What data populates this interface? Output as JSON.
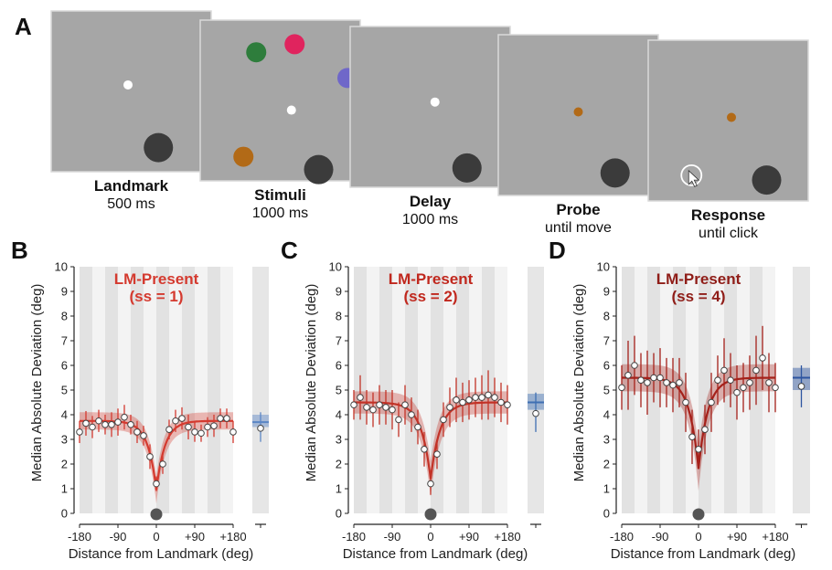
{
  "panel_a": {
    "letter": "A",
    "frames": [
      {
        "title": "Landmark",
        "duration": "500 ms",
        "dots": [
          {
            "color": "#ffffff",
            "r": 5,
            "fx": 0.48,
            "fy": 0.46
          }
        ],
        "landmark": {
          "fx": 0.67,
          "fy": 0.85
        }
      },
      {
        "title": "Stimuli",
        "duration": "1000 ms",
        "dots": [
          {
            "color": "#2e7d3c",
            "r": 11,
            "fx": 0.35,
            "fy": 0.2
          },
          {
            "color": "#e0245e",
            "r": 11,
            "fx": 0.59,
            "fy": 0.15
          },
          {
            "color": "#6f67c9",
            "r": 11,
            "fx": 0.92,
            "fy": 0.36
          },
          {
            "color": "#ffffff",
            "r": 5,
            "fx": 0.57,
            "fy": 0.56
          },
          {
            "color": "#b26a17",
            "r": 11,
            "fx": 0.27,
            "fy": 0.85
          }
        ],
        "landmark": {
          "fx": 0.74,
          "fy": 0.93
        }
      },
      {
        "title": "Delay",
        "duration": "1000 ms",
        "dots": [
          {
            "color": "#ffffff",
            "r": 5,
            "fx": 0.53,
            "fy": 0.47
          }
        ],
        "landmark": {
          "fx": 0.73,
          "fy": 0.88
        }
      },
      {
        "title": "Probe",
        "duration": "until move",
        "dots": [
          {
            "color": "#b26a17",
            "r": 5,
            "fx": 0.5,
            "fy": 0.48
          }
        ],
        "landmark": {
          "fx": 0.73,
          "fy": 0.86
        }
      },
      {
        "title": "Response",
        "duration": "until click",
        "dots": [
          {
            "color": "#b26a17",
            "r": 5,
            "fx": 0.52,
            "fy": 0.48
          }
        ],
        "landmark": {
          "fx": 0.74,
          "fy": 0.87
        },
        "cursor": {
          "fx": 0.27,
          "fy": 0.84
        }
      }
    ]
  },
  "chart_data": [
    {
      "panel": "B",
      "type": "line",
      "title": "LM-Present",
      "subtitle": "(ss = 1)",
      "ylabel": "Median Absolute Deviation (deg)",
      "xlabel": "Distance from Landmark (deg)",
      "xlim": [
        -180,
        180
      ],
      "ylim": [
        0,
        10
      ],
      "xticks": [
        "-180",
        "-90",
        "0",
        "+90",
        "+180"
      ],
      "yticks": [
        "0",
        "1",
        "2",
        "3",
        "4",
        "5",
        "6",
        "7",
        "8",
        "9",
        "10"
      ],
      "series_color": "#d43a2f",
      "title_color": "#d43a2f",
      "fit": {
        "baseline": 3.75,
        "dip_min": 0.95,
        "width": 20
      },
      "band": 0.35,
      "points": {
        "x": [
          -180,
          -165,
          -150,
          -135,
          -120,
          -105,
          -90,
          -75,
          -60,
          -45,
          -30,
          -15,
          0,
          15,
          30,
          45,
          60,
          75,
          90,
          105,
          120,
          135,
          150,
          165,
          180
        ],
        "y": [
          3.3,
          3.65,
          3.5,
          3.75,
          3.6,
          3.6,
          3.7,
          3.9,
          3.6,
          3.3,
          3.15,
          2.3,
          1.2,
          2.0,
          3.4,
          3.75,
          3.85,
          3.5,
          3.3,
          3.25,
          3.5,
          3.55,
          3.85,
          3.85,
          3.3
        ],
        "err": [
          0.45,
          0.5,
          0.45,
          0.45,
          0.4,
          0.5,
          0.55,
          0.5,
          0.4,
          0.45,
          0.4,
          0.5,
          0.3,
          0.4,
          0.4,
          0.45,
          0.45,
          0.5,
          0.4,
          0.35,
          0.4,
          0.45,
          0.4,
          0.4,
          0.45
        ]
      },
      "side": {
        "mean": 3.7,
        "point": 3.45,
        "ci": [
          3.5,
          4.0
        ],
        "err": [
          2.9,
          4.1
        ],
        "color": "#5b86c5"
      }
    },
    {
      "panel": "C",
      "type": "line",
      "title": "LM-Present",
      "subtitle": "(ss = 2)",
      "ylabel": "Median Absolute Deviation (deg)",
      "xlabel": "Distance from Landmark (deg)",
      "xlim": [
        -180,
        180
      ],
      "ylim": [
        0,
        10
      ],
      "xticks": [
        "-180",
        "-90",
        "0",
        "+90",
        "+180"
      ],
      "yticks": [
        "0",
        "1",
        "2",
        "3",
        "4",
        "5",
        "6",
        "7",
        "8",
        "9",
        "10"
      ],
      "series_color": "#c23227",
      "title_color": "#c0281e",
      "fit": {
        "baseline": 4.5,
        "dip_min": 1.4,
        "width": 22
      },
      "band": 0.45,
      "points": {
        "x": [
          -180,
          -165,
          -150,
          -135,
          -120,
          -105,
          -90,
          -75,
          -60,
          -45,
          -30,
          -15,
          0,
          15,
          30,
          45,
          60,
          75,
          90,
          105,
          120,
          135,
          150,
          165,
          180
        ],
        "y": [
          4.4,
          4.7,
          4.3,
          4.2,
          4.4,
          4.3,
          4.2,
          3.8,
          4.4,
          4.0,
          3.5,
          2.6,
          1.2,
          2.4,
          3.8,
          4.3,
          4.6,
          4.5,
          4.6,
          4.7,
          4.7,
          4.8,
          4.7,
          4.5,
          4.4
        ],
        "err": [
          0.6,
          0.9,
          0.7,
          0.7,
          0.8,
          0.7,
          0.8,
          0.7,
          0.8,
          0.7,
          0.7,
          0.7,
          0.45,
          0.6,
          0.7,
          0.8,
          0.9,
          0.8,
          0.8,
          0.8,
          0.9,
          1.0,
          0.8,
          0.8,
          0.8
        ]
      },
      "side": {
        "mean": 4.5,
        "point": 4.05,
        "ci": [
          4.2,
          4.85
        ],
        "err": [
          3.3,
          4.9
        ],
        "color": "#3f6fb3"
      }
    },
    {
      "panel": "D",
      "type": "line",
      "title": "LM-Present",
      "subtitle": "(ss = 4)",
      "ylabel": "Median Absolute Deviation (deg)",
      "xlabel": "Distance from Landmark (deg)",
      "xlim": [
        -180,
        180
      ],
      "ylim": [
        0,
        10
      ],
      "xticks": [
        "-180",
        "-90",
        "0",
        "+90",
        "+180"
      ],
      "yticks": [
        "0",
        "1",
        "2",
        "3",
        "4",
        "5",
        "6",
        "7",
        "8",
        "9",
        "10"
      ],
      "series_color": "#a5211a",
      "title_color": "#8f1d18",
      "fit": {
        "baseline": 5.5,
        "dip_min": 1.8,
        "width": 22
      },
      "band": 0.55,
      "points": {
        "x": [
          -180,
          -165,
          -150,
          -135,
          -120,
          -105,
          -90,
          -75,
          -60,
          -45,
          -30,
          -15,
          0,
          15,
          30,
          45,
          60,
          75,
          90,
          105,
          120,
          135,
          150,
          165,
          180
        ],
        "y": [
          5.1,
          5.6,
          6.0,
          5.4,
          5.3,
          5.5,
          5.5,
          5.3,
          5.2,
          5.3,
          4.5,
          3.1,
          2.6,
          3.4,
          4.5,
          5.4,
          5.8,
          5.4,
          4.9,
          5.1,
          5.3,
          5.8,
          6.3,
          5.3,
          5.1
        ],
        "err": [
          0.9,
          1.4,
          1.2,
          1.1,
          1.3,
          1.0,
          1.2,
          1.0,
          1.1,
          1.0,
          1.2,
          1.1,
          0.8,
          1.0,
          1.2,
          1.0,
          1.3,
          1.1,
          1.1,
          1.0,
          1.1,
          1.4,
          1.3,
          1.2,
          1.0
        ]
      },
      "side": {
        "mean": 5.5,
        "point": 5.15,
        "ci": [
          5.0,
          5.9
        ],
        "err": [
          4.3,
          6.0
        ],
        "color": "#2d55a0"
      }
    }
  ]
}
